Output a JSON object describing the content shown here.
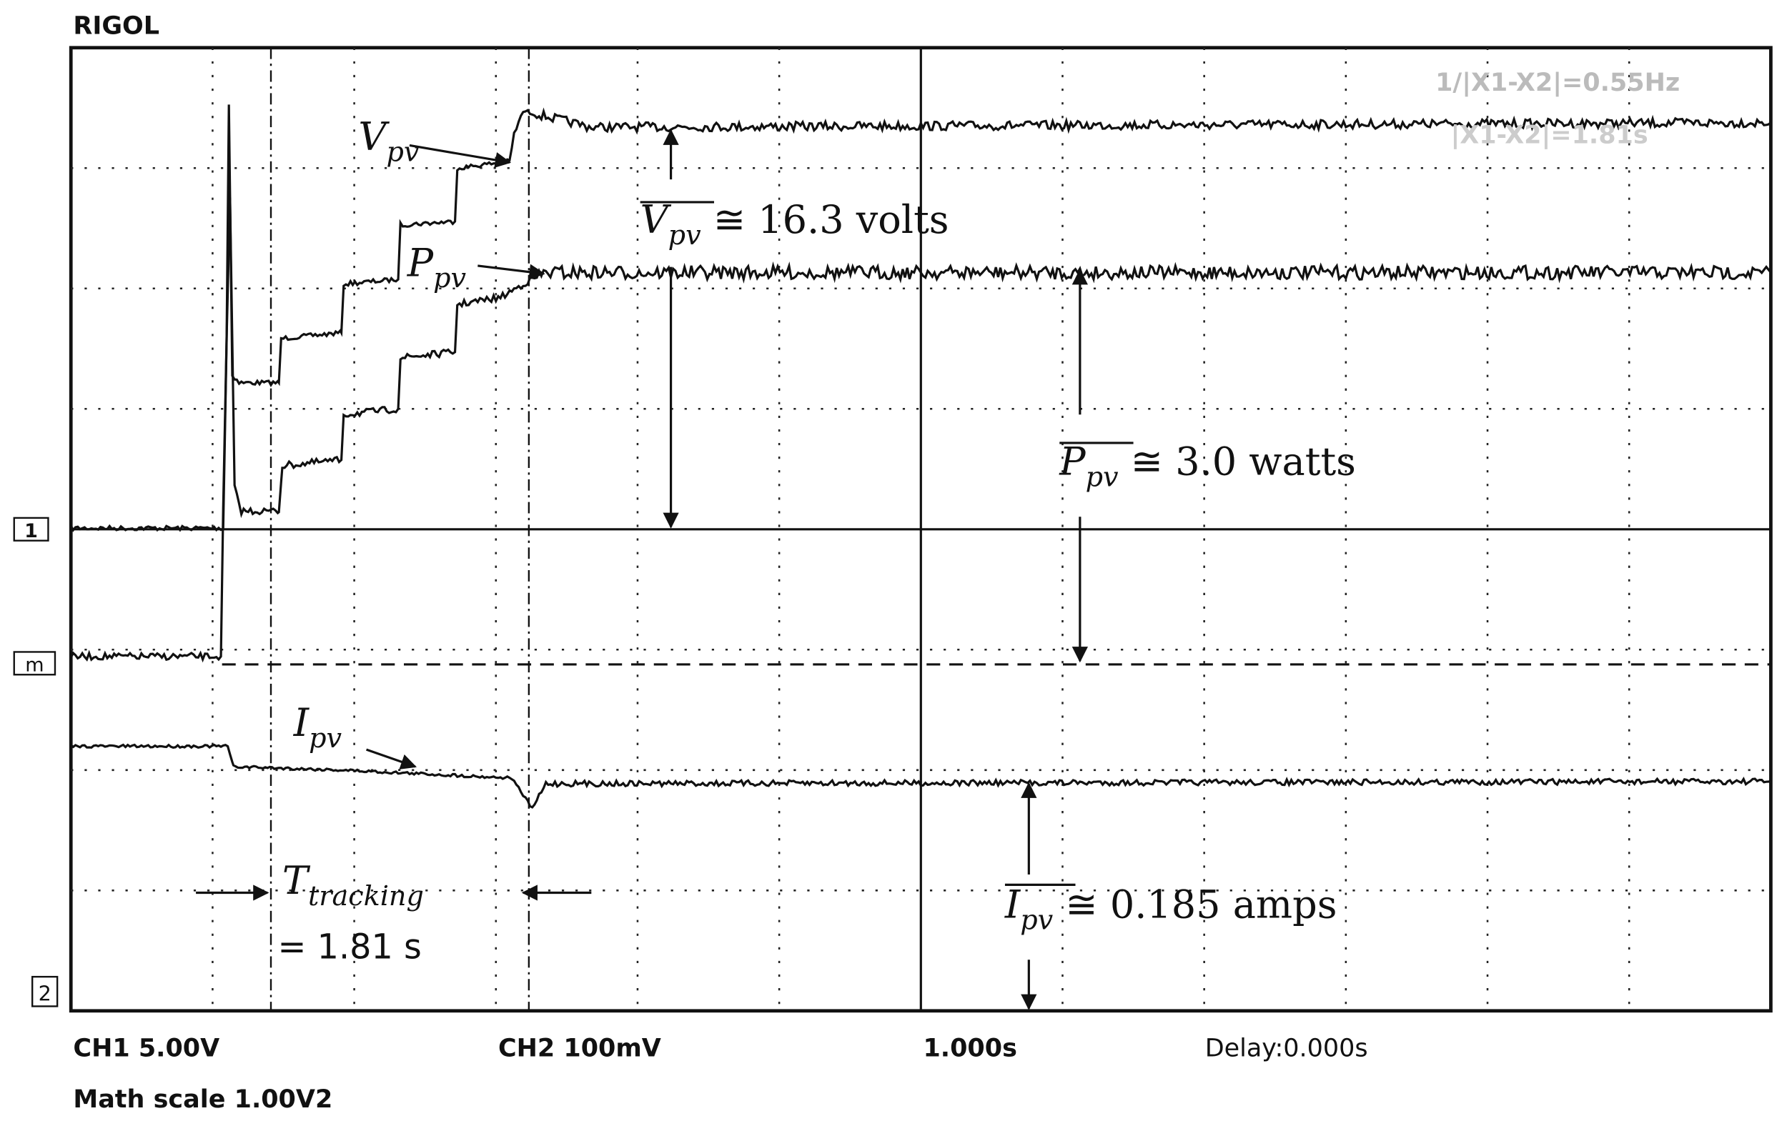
{
  "header": {
    "brand": "RIGOL",
    "cursor_freq": "1/|X1-X2|=0.55Hz",
    "cursor_delta": "|X1-X2|=1.81s"
  },
  "markers": {
    "ch1": "1",
    "math": "m",
    "ch2": "2"
  },
  "footer": {
    "ch1": "CH1 5.00V",
    "ch2": "CH2 100mV",
    "timebase": "1.000s",
    "delay": "Delay:0.000s",
    "math": "Math scale 1.00V2"
  },
  "annotations": {
    "vpv": {
      "symbol": "V",
      "subscript": "pv"
    },
    "ppv": {
      "symbol": "P",
      "subscript": "pv"
    },
    "ipv": {
      "symbol": "I",
      "subscript": "pv"
    },
    "vpv_avg": {
      "symbol": "V",
      "subscript": "pv",
      "text": " ≅ 16.3 volts"
    },
    "ppv_avg": {
      "symbol": "P",
      "subscript": "pv",
      "text": " ≅ 3.0 watts"
    },
    "ipv_avg": {
      "symbol": "I",
      "subscript": "pv",
      "text": " ≅ 0.185 amps"
    },
    "tracking": {
      "symbol": "T",
      "subscript": "tracking",
      "text": "= 1.81 s"
    }
  }
}
